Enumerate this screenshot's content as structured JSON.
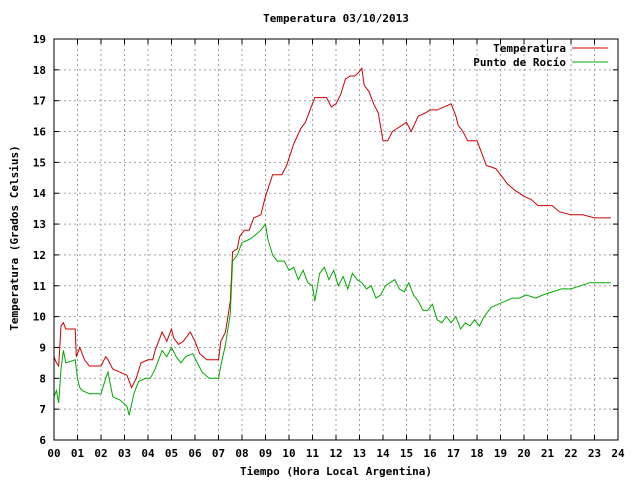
{
  "chart_data": {
    "type": "line",
    "title": "Temperatura 03/10/2013",
    "xlabel": "Tiempo (Hora Local Argentina)",
    "ylabel": "Temperatura (Grados Celsius)",
    "xlim": [
      0,
      24
    ],
    "ylim": [
      6,
      19
    ],
    "x_ticks": [
      "00",
      "01",
      "02",
      "03",
      "04",
      "05",
      "06",
      "07",
      "08",
      "09",
      "10",
      "11",
      "12",
      "13",
      "14",
      "15",
      "16",
      "17",
      "18",
      "19",
      "20",
      "21",
      "22",
      "23",
      "24"
    ],
    "y_ticks": [
      6,
      7,
      8,
      9,
      10,
      11,
      12,
      13,
      14,
      15,
      16,
      17,
      18,
      19
    ],
    "grid": true,
    "legend_position": "top-right",
    "series": [
      {
        "name": "Temperatura",
        "color": "#cc0000",
        "points": [
          [
            0.0,
            8.7
          ],
          [
            0.1,
            8.5
          ],
          [
            0.2,
            8.4
          ],
          [
            0.3,
            9.7
          ],
          [
            0.4,
            9.8
          ],
          [
            0.5,
            9.6
          ],
          [
            0.9,
            9.6
          ],
          [
            0.95,
            8.7
          ],
          [
            1.1,
            9.0
          ],
          [
            1.3,
            8.6
          ],
          [
            1.5,
            8.4
          ],
          [
            2.0,
            8.4
          ],
          [
            2.2,
            8.7
          ],
          [
            2.3,
            8.6
          ],
          [
            2.5,
            8.3
          ],
          [
            2.8,
            8.2
          ],
          [
            3.1,
            8.1
          ],
          [
            3.3,
            7.7
          ],
          [
            3.5,
            8.0
          ],
          [
            3.7,
            8.5
          ],
          [
            4.0,
            8.6
          ],
          [
            4.2,
            8.6
          ],
          [
            4.3,
            8.9
          ],
          [
            4.5,
            9.3
          ],
          [
            4.6,
            9.5
          ],
          [
            4.8,
            9.2
          ],
          [
            5.0,
            9.6
          ],
          [
            5.1,
            9.3
          ],
          [
            5.3,
            9.1
          ],
          [
            5.5,
            9.2
          ],
          [
            5.8,
            9.5
          ],
          [
            6.0,
            9.2
          ],
          [
            6.2,
            8.8
          ],
          [
            6.5,
            8.6
          ],
          [
            7.0,
            8.6
          ],
          [
            7.1,
            9.2
          ],
          [
            7.3,
            9.5
          ],
          [
            7.5,
            10.5
          ],
          [
            7.6,
            12.1
          ],
          [
            7.8,
            12.2
          ],
          [
            7.9,
            12.6
          ],
          [
            8.1,
            12.8
          ],
          [
            8.3,
            12.8
          ],
          [
            8.5,
            13.2
          ],
          [
            8.8,
            13.3
          ],
          [
            9.0,
            13.9
          ],
          [
            9.3,
            14.6
          ],
          [
            9.7,
            14.6
          ],
          [
            9.9,
            14.9
          ],
          [
            10.2,
            15.6
          ],
          [
            10.5,
            16.1
          ],
          [
            10.7,
            16.3
          ],
          [
            10.9,
            16.7
          ],
          [
            11.1,
            17.1
          ],
          [
            11.3,
            17.1
          ],
          [
            11.6,
            17.1
          ],
          [
            11.8,
            16.8
          ],
          [
            12.0,
            16.9
          ],
          [
            12.2,
            17.2
          ],
          [
            12.4,
            17.7
          ],
          [
            12.6,
            17.8
          ],
          [
            12.8,
            17.8
          ],
          [
            12.95,
            17.9
          ],
          [
            13.1,
            18.05
          ],
          [
            13.2,
            17.5
          ],
          [
            13.4,
            17.3
          ],
          [
            13.6,
            16.9
          ],
          [
            13.8,
            16.6
          ],
          [
            14.0,
            15.7
          ],
          [
            14.2,
            15.7
          ],
          [
            14.4,
            16.0
          ],
          [
            14.6,
            16.1
          ],
          [
            14.8,
            16.2
          ],
          [
            15.0,
            16.3
          ],
          [
            15.2,
            16.0
          ],
          [
            15.5,
            16.5
          ],
          [
            15.8,
            16.6
          ],
          [
            16.0,
            16.7
          ],
          [
            16.3,
            16.7
          ],
          [
            16.6,
            16.8
          ],
          [
            16.9,
            16.9
          ],
          [
            17.1,
            16.5
          ],
          [
            17.2,
            16.2
          ],
          [
            17.4,
            16.0
          ],
          [
            17.6,
            15.7
          ],
          [
            18.0,
            15.7
          ],
          [
            18.2,
            15.3
          ],
          [
            18.4,
            14.9
          ],
          [
            18.8,
            14.8
          ],
          [
            19.0,
            14.6
          ],
          [
            19.3,
            14.3
          ],
          [
            19.6,
            14.1
          ],
          [
            20.0,
            13.9
          ],
          [
            20.3,
            13.8
          ],
          [
            20.6,
            13.6
          ],
          [
            21.2,
            13.6
          ],
          [
            21.5,
            13.4
          ],
          [
            22.0,
            13.3
          ],
          [
            22.5,
            13.3
          ],
          [
            23.0,
            13.2
          ],
          [
            23.7,
            13.2
          ]
        ]
      },
      {
        "name": "Punto de Rocío",
        "color": "#00aa00",
        "points": [
          [
            0.0,
            7.4
          ],
          [
            0.1,
            7.6
          ],
          [
            0.2,
            7.2
          ],
          [
            0.3,
            8.3
          ],
          [
            0.4,
            8.9
          ],
          [
            0.5,
            8.5
          ],
          [
            0.9,
            8.6
          ],
          [
            1.0,
            8.0
          ],
          [
            1.1,
            7.7
          ],
          [
            1.2,
            7.6
          ],
          [
            1.5,
            7.5
          ],
          [
            2.0,
            7.5
          ],
          [
            2.2,
            8.0
          ],
          [
            2.3,
            8.2
          ],
          [
            2.5,
            7.4
          ],
          [
            2.8,
            7.3
          ],
          [
            3.1,
            7.1
          ],
          [
            3.2,
            6.8
          ],
          [
            3.4,
            7.5
          ],
          [
            3.6,
            7.9
          ],
          [
            3.9,
            8.0
          ],
          [
            4.1,
            8.0
          ],
          [
            4.3,
            8.3
          ],
          [
            4.5,
            8.7
          ],
          [
            4.6,
            8.9
          ],
          [
            4.8,
            8.7
          ],
          [
            5.0,
            9.0
          ],
          [
            5.2,
            8.7
          ],
          [
            5.4,
            8.5
          ],
          [
            5.6,
            8.7
          ],
          [
            5.9,
            8.8
          ],
          [
            6.1,
            8.5
          ],
          [
            6.3,
            8.2
          ],
          [
            6.6,
            8.0
          ],
          [
            7.0,
            8.0
          ],
          [
            7.1,
            8.4
          ],
          [
            7.3,
            9.1
          ],
          [
            7.5,
            10.1
          ],
          [
            7.6,
            11.8
          ],
          [
            7.8,
            12.0
          ],
          [
            8.0,
            12.4
          ],
          [
            8.3,
            12.5
          ],
          [
            8.5,
            12.6
          ],
          [
            8.8,
            12.8
          ],
          [
            9.0,
            13.0
          ],
          [
            9.1,
            12.5
          ],
          [
            9.3,
            12.0
          ],
          [
            9.5,
            11.8
          ],
          [
            9.8,
            11.8
          ],
          [
            10.0,
            11.5
          ],
          [
            10.2,
            11.6
          ],
          [
            10.4,
            11.2
          ],
          [
            10.6,
            11.5
          ],
          [
            10.8,
            11.1
          ],
          [
            11.0,
            11.0
          ],
          [
            11.1,
            10.5
          ],
          [
            11.3,
            11.4
          ],
          [
            11.5,
            11.6
          ],
          [
            11.7,
            11.2
          ],
          [
            11.9,
            11.5
          ],
          [
            12.1,
            11.0
          ],
          [
            12.3,
            11.3
          ],
          [
            12.5,
            10.9
          ],
          [
            12.7,
            11.4
          ],
          [
            12.9,
            11.2
          ],
          [
            13.1,
            11.1
          ],
          [
            13.3,
            10.9
          ],
          [
            13.5,
            11.0
          ],
          [
            13.7,
            10.6
          ],
          [
            13.9,
            10.7
          ],
          [
            14.1,
            11.0
          ],
          [
            14.3,
            11.1
          ],
          [
            14.5,
            11.2
          ],
          [
            14.7,
            10.9
          ],
          [
            14.9,
            10.8
          ],
          [
            15.1,
            11.1
          ],
          [
            15.3,
            10.7
          ],
          [
            15.5,
            10.5
          ],
          [
            15.7,
            10.2
          ],
          [
            15.9,
            10.2
          ],
          [
            16.1,
            10.4
          ],
          [
            16.3,
            9.9
          ],
          [
            16.5,
            9.8
          ],
          [
            16.7,
            10.0
          ],
          [
            16.9,
            9.8
          ],
          [
            17.1,
            10.0
          ],
          [
            17.3,
            9.6
          ],
          [
            17.5,
            9.8
          ],
          [
            17.7,
            9.7
          ],
          [
            17.9,
            9.9
          ],
          [
            18.1,
            9.7
          ],
          [
            18.3,
            10.0
          ],
          [
            18.6,
            10.3
          ],
          [
            18.9,
            10.4
          ],
          [
            19.2,
            10.5
          ],
          [
            19.5,
            10.6
          ],
          [
            19.8,
            10.6
          ],
          [
            20.1,
            10.7
          ],
          [
            20.5,
            10.6
          ],
          [
            20.8,
            10.7
          ],
          [
            21.2,
            10.8
          ],
          [
            21.6,
            10.9
          ],
          [
            22.0,
            10.9
          ],
          [
            22.4,
            11.0
          ],
          [
            22.8,
            11.1
          ],
          [
            23.2,
            11.1
          ],
          [
            23.7,
            11.1
          ]
        ]
      }
    ]
  }
}
